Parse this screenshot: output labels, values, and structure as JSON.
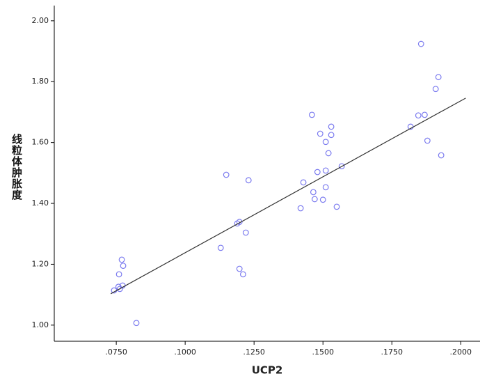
{
  "chart_data": {
    "type": "scatter",
    "x_label": "UCP2",
    "y_label": "线粒体肿胀度",
    "x": [
      0.1856,
      0.1919,
      0.1909,
      0.1869,
      0.1846,
      0.1818,
      0.1879,
      0.1929,
      0.146,
      0.153,
      0.149,
      0.153,
      0.151,
      0.152,
      0.151,
      0.148,
      0.1568,
      0.1429,
      0.151,
      0.1465,
      0.147,
      0.15,
      0.1419,
      0.155,
      0.1149,
      0.123,
      0.1197,
      0.1189,
      0.122,
      0.1129,
      0.1197,
      0.121,
      0.077,
      0.0775,
      0.076,
      0.0773,
      0.0758,
      0.0742,
      0.0763,
      0.0823
    ],
    "values": [
      1.924,
      1.815,
      1.776,
      1.691,
      1.689,
      1.652,
      1.606,
      1.558,
      1.691,
      1.652,
      1.629,
      1.625,
      1.602,
      1.565,
      1.508,
      1.503,
      1.522,
      1.469,
      1.453,
      1.437,
      1.414,
      1.412,
      1.384,
      1.389,
      1.494,
      1.476,
      1.339,
      1.334,
      1.304,
      1.254,
      1.185,
      1.167,
      1.215,
      1.195,
      1.167,
      1.13,
      1.126,
      1.114,
      1.119,
      1.007
    ],
    "color": "#7b7bef",
    "fit_line": {
      "x": [
        0.073,
        0.2018
      ],
      "values": [
        1.103,
        1.746
      ],
      "color": "#333333"
    },
    "xlim": [
      0.0525,
      0.207
    ],
    "ylim": [
      0.947,
      2.05
    ],
    "xticks": [
      {
        "value": 0.075,
        "label": ".0750"
      },
      {
        "value": 0.1,
        "label": ".1000"
      },
      {
        "value": 0.125,
        "label": ".1250"
      },
      {
        "value": 0.15,
        "label": ".1500"
      },
      {
        "value": 0.175,
        "label": ".1750"
      },
      {
        "value": 0.2,
        "label": ".2000"
      }
    ],
    "yticks": [
      {
        "value": 1,
        "label": "1.00"
      },
      {
        "value": 1.2,
        "label": "1.20"
      },
      {
        "value": 1.4,
        "label": "1.40"
      },
      {
        "value": 1.6,
        "label": "1.60"
      },
      {
        "value": 1.8,
        "label": "1.80"
      },
      {
        "value": 2,
        "label": "2.00"
      }
    ]
  }
}
